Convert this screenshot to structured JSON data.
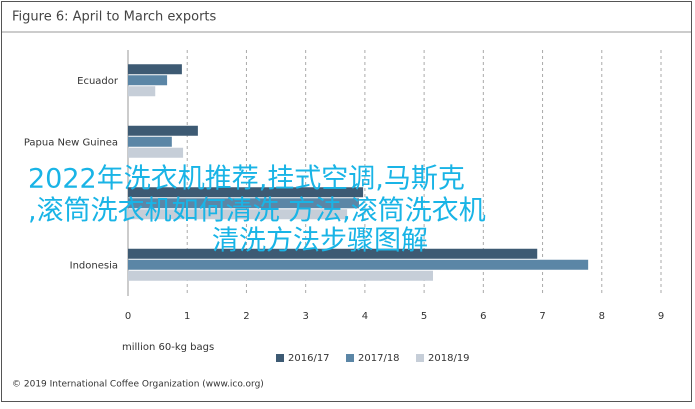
{
  "chart_data": {
    "type": "hbar",
    "title": "Figure 6: April to March exports",
    "categories": [
      "Ecuador",
      "Papua New Guinea",
      null,
      "Indonesia"
    ],
    "series": [
      {
        "name": "2016/17",
        "color": "#3d5a73",
        "values": [
          0.91,
          1.18,
          3.97,
          6.91
        ]
      },
      {
        "name": "2017/18",
        "color": "#5b86a6",
        "values": [
          0.66,
          0.74,
          3.9,
          7.77
        ]
      },
      {
        "name": "2018/19",
        "color": "#c6ced8",
        "values": [
          0.46,
          0.93,
          3.7,
          5.15
        ]
      }
    ],
    "xlim": [
      0,
      9
    ],
    "xticks": [
      0,
      1,
      2,
      3,
      4,
      5,
      6,
      7,
      8,
      9
    ],
    "grid": true,
    "xlabel": "million 60-kg bags",
    "legend": "bottom",
    "source": "© 2019 International Coffee Organization (www.ico.org)"
  },
  "overlay": {
    "lines": [
      "2022年洗衣机推荐,挂式空调,马斯克",
      ",滚筒洗衣机如何清洗 方法,滚筒洗衣机",
      "清洗方法步骤图解"
    ]
  }
}
